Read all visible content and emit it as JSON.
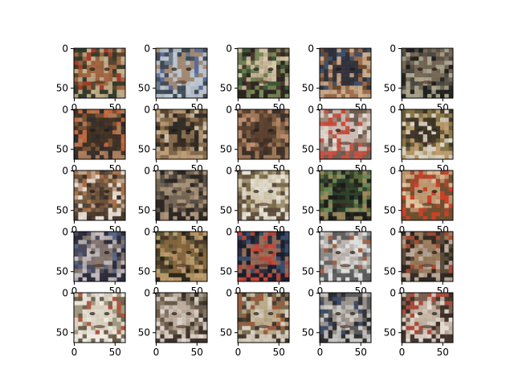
{
  "figure": {
    "rows": 5,
    "cols": 5,
    "x_tick_labels": [
      "0",
      "50"
    ],
    "y_tick_labels": [
      "0",
      "50"
    ]
  },
  "panels": [
    {
      "palette": [
        "#5a4630",
        "#a86a44",
        "#2f3b2a",
        "#c8b490",
        "#b03a2a"
      ]
    },
    {
      "palette": [
        "#6a7a8c",
        "#a88a70",
        "#3c4650",
        "#c0c8d0",
        "#5a6a9a"
      ]
    },
    {
      "palette": [
        "#4a3a2c",
        "#d8c8a8",
        "#2a2620",
        "#7a8a5a",
        "#3a5a3a"
      ]
    },
    {
      "palette": [
        "#6a4a30",
        "#2c3040",
        "#a07050",
        "#d0b090",
        "#3a5070"
      ]
    },
    {
      "palette": [
        "#4a4a44",
        "#7a6a58",
        "#1e1e1c",
        "#b0a890",
        "#5c5448"
      ]
    },
    {
      "palette": [
        "#7a5034",
        "#3c3024",
        "#b08060",
        "#2a2a2a",
        "#c86a40"
      ]
    },
    {
      "palette": [
        "#5a4632",
        "#2e2a26",
        "#c0a078",
        "#8a7050",
        "#d8c8b0"
      ]
    },
    {
      "palette": [
        "#7a5a40",
        "#5a4030",
        "#a07858",
        "#3a3028",
        "#c09070"
      ]
    },
    {
      "palette": [
        "#a08878",
        "#d0c0b8",
        "#6a5a50",
        "#c84a3a",
        "#e8e0d8"
      ]
    },
    {
      "palette": [
        "#6a5a3a",
        "#3a3228",
        "#c0a070",
        "#e0d8c8",
        "#8a7a4a"
      ]
    },
    {
      "palette": [
        "#c0a088",
        "#6a5038",
        "#e8e0d8",
        "#3a2e24",
        "#a06a40"
      ]
    },
    {
      "palette": [
        "#4a4036",
        "#7a6a58",
        "#2a2622",
        "#b09a80",
        "#5a5048"
      ]
    },
    {
      "palette": [
        "#a09070",
        "#d8d0b8",
        "#5a4a3a",
        "#e8e4d8",
        "#7a6a4a"
      ]
    },
    {
      "palette": [
        "#5a6a3a",
        "#2a3a2a",
        "#a08a60",
        "#1a1a1a",
        "#6a8a5a"
      ]
    },
    {
      "palette": [
        "#a04a30",
        "#c0a078",
        "#6a5030",
        "#d04028",
        "#e0c8a0"
      ]
    },
    {
      "palette": [
        "#4a4a5a",
        "#8a7a70",
        "#2a2a3a",
        "#c8c0c0",
        "#5a6a8a"
      ]
    },
    {
      "palette": [
        "#4a3a2a",
        "#8a6a40",
        "#2a2418",
        "#c0a070",
        "#5a5a3a"
      ]
    },
    {
      "palette": [
        "#2a3040",
        "#a07058",
        "#1a1e2a",
        "#c84838",
        "#3a5070"
      ]
    },
    {
      "palette": [
        "#8a8a8a",
        "#c0b8b0",
        "#5a5a5a",
        "#e0e0e0",
        "#a06040"
      ]
    },
    {
      "palette": [
        "#5a4a3a",
        "#a08060",
        "#2e2620",
        "#c0b0a0",
        "#b04a30"
      ]
    },
    {
      "palette": [
        "#a09880",
        "#e0d8c8",
        "#6a5a48",
        "#f0ece4",
        "#b05038"
      ]
    },
    {
      "palette": [
        "#6a5a4a",
        "#c0b0a0",
        "#3a3028",
        "#e0d8d0",
        "#8a7a6a"
      ]
    },
    {
      "palette": [
        "#7a6a50",
        "#c0b090",
        "#3a3228",
        "#d8d0c0",
        "#a05a3a"
      ]
    },
    {
      "palette": [
        "#5a5a5a",
        "#a09890",
        "#2a2a2e",
        "#d0ccc8",
        "#3a4a6a"
      ]
    },
    {
      "palette": [
        "#7a6050",
        "#c8b8a8",
        "#3a2e28",
        "#e8e0d8",
        "#b04838"
      ]
    }
  ]
}
